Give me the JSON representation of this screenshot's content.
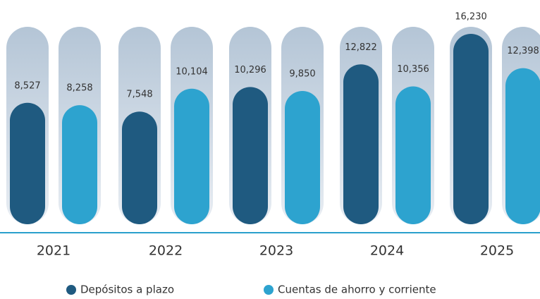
{
  "chart_data": {
    "type": "bar",
    "categories": [
      "2021",
      "2022",
      "2023",
      "2024",
      "2025"
    ],
    "series": [
      {
        "name": "Depósitos a plazo",
        "color": "#1f5a80",
        "values": [
          8527,
          7548,
          10296,
          12822,
          16230
        ],
        "value_labels": [
          "8,527",
          "7,548",
          "10,296",
          "12,822",
          "16,230"
        ]
      },
      {
        "name": "Cuentas de ahorro y corriente",
        "color": "#2da3cf",
        "values": [
          8258,
          10104,
          9850,
          10356,
          12398
        ],
        "value_labels": [
          "8,258",
          "10,104",
          "9,850",
          "10,356",
          "12,398"
        ]
      }
    ]
  }
}
